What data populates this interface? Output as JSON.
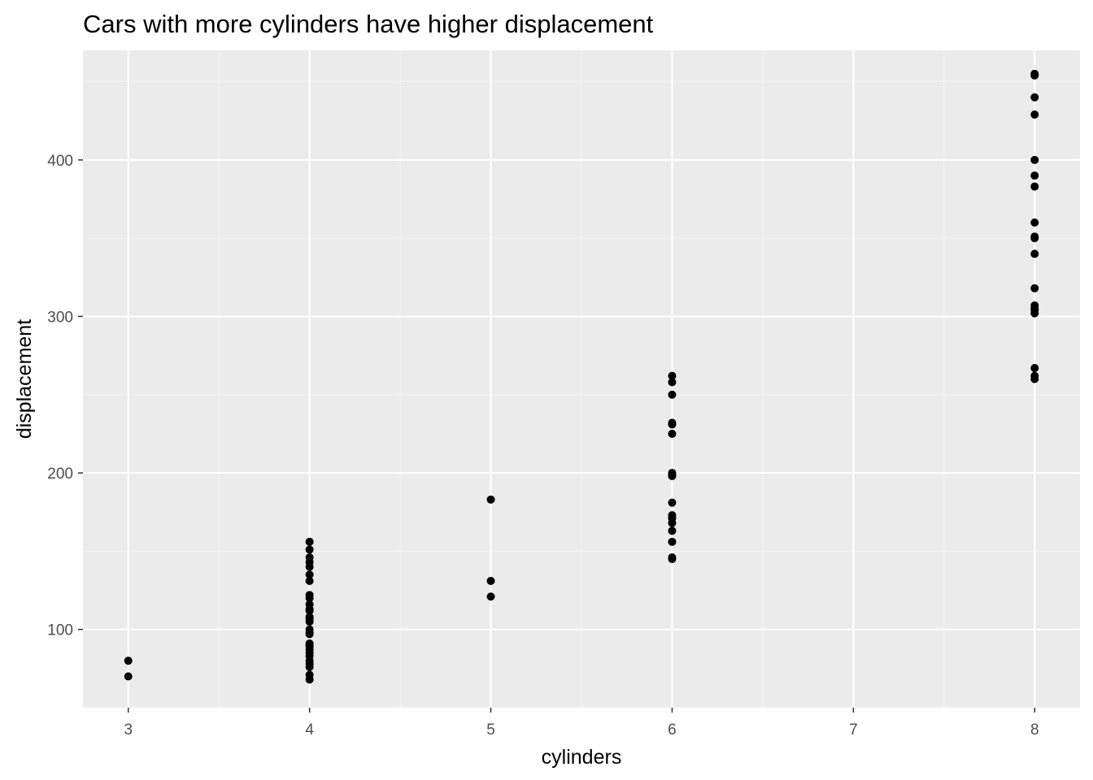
{
  "colors": {
    "panel_background": "#ebebeb",
    "major_grid": "#ffffff",
    "minor_grid": "#f5f5f5",
    "point": "#000000",
    "tick": "#333333",
    "tick_label": "#4d4d4d"
  },
  "chart_data": {
    "type": "scatter",
    "title": "Cars with more cylinders have higher displacement",
    "xlabel": "cylinders",
    "ylabel": "displacement",
    "xlim": [
      2.75,
      8.25
    ],
    "ylim": [
      50,
      470
    ],
    "x_ticks": [
      3,
      4,
      5,
      6,
      7,
      8
    ],
    "y_ticks": [
      100,
      200,
      300,
      400
    ],
    "grid": true,
    "legend": "none",
    "series": [
      {
        "points": [
          [
            3,
            70
          ],
          [
            3,
            80
          ],
          [
            4,
            68
          ],
          [
            4,
            71
          ],
          [
            4,
            76
          ],
          [
            4,
            78
          ],
          [
            4,
            80
          ],
          [
            4,
            83
          ],
          [
            4,
            85
          ],
          [
            4,
            87
          ],
          [
            4,
            89
          ],
          [
            4,
            90
          ],
          [
            4,
            91
          ],
          [
            4,
            97
          ],
          [
            4,
            98
          ],
          [
            4,
            100
          ],
          [
            4,
            105
          ],
          [
            4,
            107
          ],
          [
            4,
            108
          ],
          [
            4,
            112
          ],
          [
            4,
            113
          ],
          [
            4,
            116
          ],
          [
            4,
            120
          ],
          [
            4,
            122
          ],
          [
            4,
            131
          ],
          [
            4,
            135
          ],
          [
            4,
            140
          ],
          [
            4,
            143
          ],
          [
            4,
            146
          ],
          [
            4,
            151
          ],
          [
            4,
            156
          ],
          [
            5,
            121
          ],
          [
            5,
            131
          ],
          [
            5,
            183
          ],
          [
            6,
            145
          ],
          [
            6,
            146
          ],
          [
            6,
            156
          ],
          [
            6,
            163
          ],
          [
            6,
            168
          ],
          [
            6,
            171
          ],
          [
            6,
            173
          ],
          [
            6,
            181
          ],
          [
            6,
            198
          ],
          [
            6,
            199
          ],
          [
            6,
            200
          ],
          [
            6,
            225
          ],
          [
            6,
            231
          ],
          [
            6,
            232
          ],
          [
            6,
            250
          ],
          [
            6,
            258
          ],
          [
            6,
            262
          ],
          [
            8,
            260
          ],
          [
            8,
            262
          ],
          [
            8,
            267
          ],
          [
            8,
            302
          ],
          [
            8,
            304
          ],
          [
            8,
            305
          ],
          [
            8,
            307
          ],
          [
            8,
            318
          ],
          [
            8,
            340
          ],
          [
            8,
            350
          ],
          [
            8,
            351
          ],
          [
            8,
            360
          ],
          [
            8,
            383
          ],
          [
            8,
            390
          ],
          [
            8,
            400
          ],
          [
            8,
            429
          ],
          [
            8,
            440
          ],
          [
            8,
            454
          ],
          [
            8,
            455
          ]
        ]
      }
    ]
  }
}
